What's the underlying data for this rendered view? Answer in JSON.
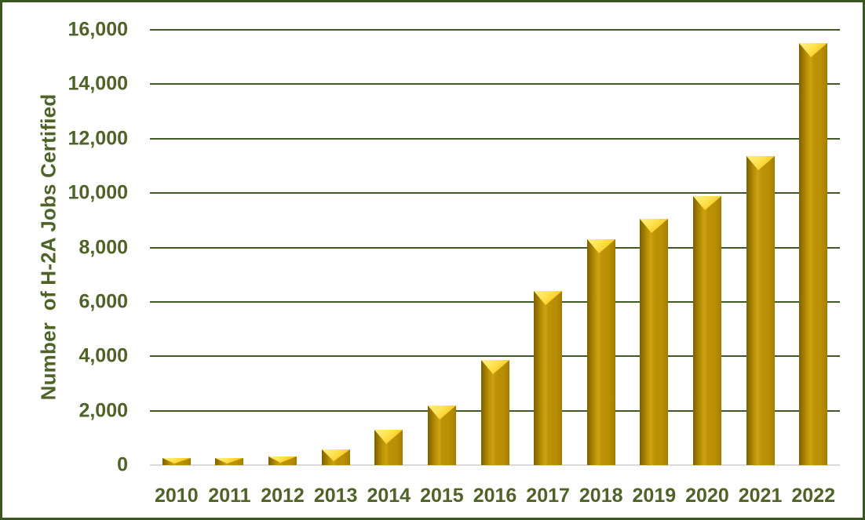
{
  "chart_data": {
    "type": "bar",
    "title": "",
    "categories": [
      "2010",
      "2011",
      "2012",
      "2013",
      "2014",
      "2015",
      "2016",
      "2017",
      "2018",
      "2019",
      "2020",
      "2021",
      "2022"
    ],
    "values": [
      250,
      270,
      330,
      580,
      1300,
      2200,
      3850,
      6400,
      8300,
      9050,
      9900,
      11350,
      15500
    ],
    "xlabel": "",
    "ylabel": "Number  of H-2A Jobs Certified",
    "ylim": [
      0,
      16000
    ],
    "ytick_step": 2000,
    "ytick_labels": [
      "0",
      "2,000",
      "4,000",
      "6,000",
      "8,000",
      "10,000",
      "12,000",
      "14,000",
      "16,000"
    ],
    "grid": true,
    "legend_position": "none"
  },
  "colors": {
    "background": "#FFFFFF",
    "border_green": "#3A5623",
    "text_green": "#4F6228",
    "gridline_green": "#3E5B26",
    "baseline_gray": "#D9D9D9",
    "bar_body_gold": "#BF9000",
    "bar_highlight_yellow": "#FFE34F",
    "bar_shadow_gold": "#7C5F00"
  }
}
